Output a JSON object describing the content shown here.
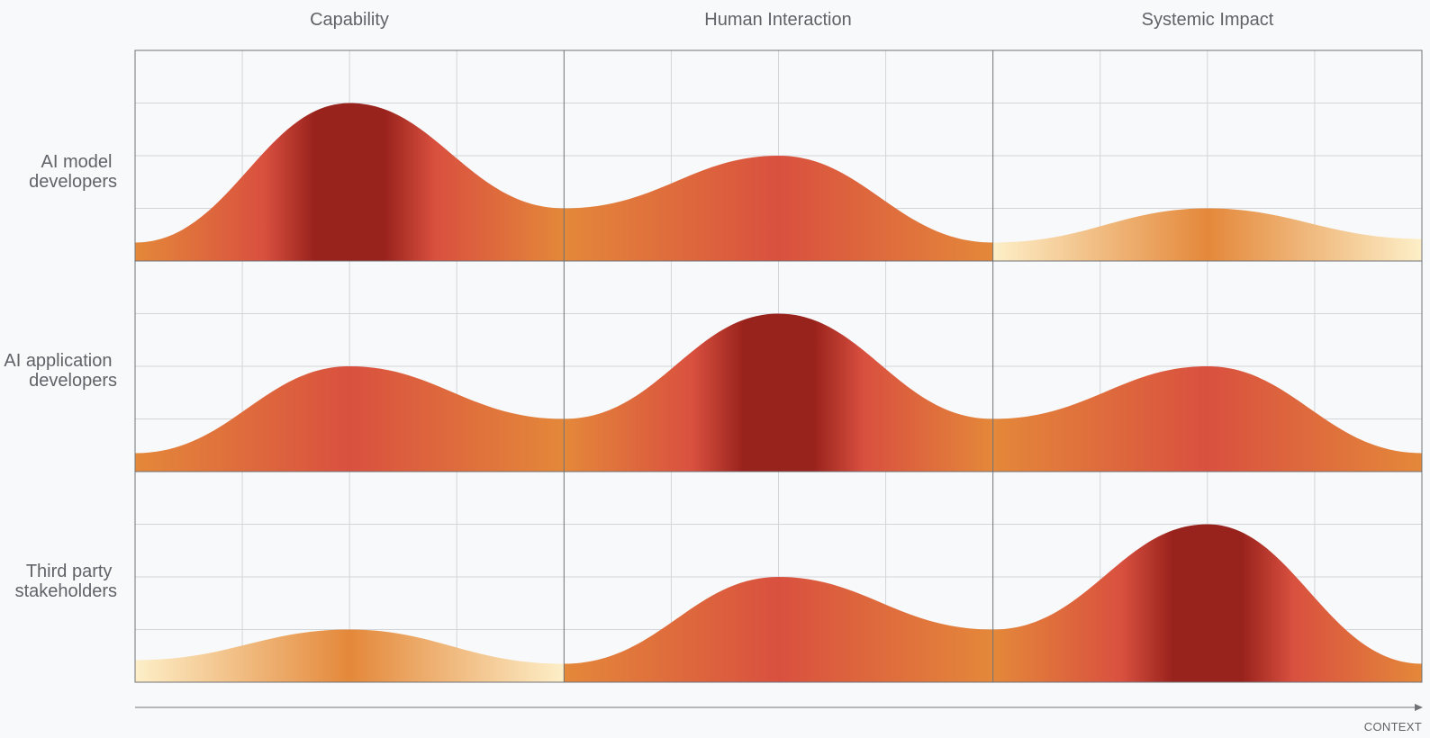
{
  "columns": [
    "Capability",
    "Human Interaction",
    "Systemic Impact"
  ],
  "rows": [
    {
      "label_line1": "AI model",
      "label_line2": "developers"
    },
    {
      "label_line1": "AI application",
      "label_line2": "developers"
    },
    {
      "label_line1": "Third party",
      "label_line2": "stakeholders"
    }
  ],
  "axis_label": "CONTEXT",
  "levels": [
    [
      3,
      2,
      1
    ],
    [
      2,
      3,
      2
    ],
    [
      1,
      2,
      3
    ]
  ],
  "colors": {
    "pale": "#fdefc8",
    "orange": "#e4883a",
    "red": "#d9503f",
    "dark_red": "#98221c",
    "background": "#f8f9fa"
  }
}
